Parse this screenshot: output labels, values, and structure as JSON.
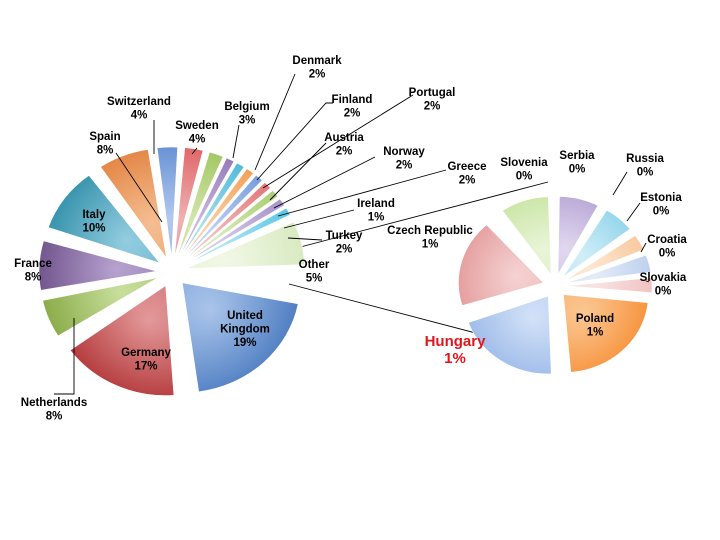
{
  "chart_data": [
    {
      "type": "pie",
      "unit": "%",
      "slices": [
        {
          "label": "United Kingdom",
          "value_text": "19%",
          "value": 19,
          "color": "#4a7ac0",
          "highlight": "#a9c4ea"
        },
        {
          "label": "Germany",
          "value_text": "17%",
          "value": 17,
          "color": "#b03234",
          "highlight": "#e3999a"
        },
        {
          "label": "Netherlands",
          "value_text": "8%",
          "value": 8,
          "color": "#86a844",
          "highlight": "#c8df9c"
        },
        {
          "label": "France",
          "value_text": "8%",
          "value": 8,
          "color": "#6d5089",
          "highlight": "#b7a2cf"
        },
        {
          "label": "Italy",
          "value_text": "10%",
          "value": 10,
          "color": "#2f8ea8",
          "highlight": "#93cde0"
        },
        {
          "label": "Spain",
          "value_text": "8%",
          "value": 8,
          "color": "#e07e3a",
          "highlight": "#f5be92"
        },
        {
          "label": "Switzerland",
          "value_text": "4%",
          "value": 4,
          "color": "#5d88d0",
          "highlight": "#b2c9ef"
        },
        {
          "label": "Sweden",
          "value_text": "4%",
          "value": 4,
          "color": "#dc5b5d",
          "highlight": "#f0b1b2"
        },
        {
          "label": "Belgium",
          "value_text": "3%",
          "value": 3,
          "color": "#9cc25a",
          "highlight": "#d3e7ae"
        },
        {
          "label": "Denmark",
          "value_text": "2%",
          "value": 2,
          "color": "#8e71b4",
          "highlight": "#cbbbe0"
        },
        {
          "label": "Finland",
          "value_text": "2%",
          "value": 2,
          "color": "#44b4d4",
          "highlight": "#a9def0"
        },
        {
          "label": "Portugal",
          "value_text": "2%",
          "value": 2,
          "color": "#f29a4e",
          "highlight": "#fbd0a6"
        },
        {
          "label": "Austria",
          "value_text": "2%",
          "value": 2,
          "color": "#6f97db",
          "highlight": "#bfd2f2"
        },
        {
          "label": "Norway",
          "value_text": "2%",
          "value": 2,
          "color": "#e06d6d",
          "highlight": "#f3bcbc"
        },
        {
          "label": "Greece",
          "value_text": "2%",
          "value": 2,
          "color": "#a6c96b",
          "highlight": "#d9ebba"
        },
        {
          "label": "Ireland",
          "value_text": "1%",
          "value": 1,
          "color": "#a08ac6",
          "highlight": "#d6cbe8"
        },
        {
          "label": "Turkey",
          "value_text": "2%",
          "value": 2,
          "color": "#4fc3e3",
          "highlight": "#b2e6f5"
        },
        {
          "label": "Other",
          "value_text": "5%",
          "value": 5,
          "color": "#d7e9be",
          "highlight": "#f1f8e6"
        }
      ]
    },
    {
      "type": "pie",
      "unit": "%",
      "slices": [
        {
          "label": "Poland",
          "value_text": "1%",
          "value": 1,
          "color": "#f7913a",
          "highlight": "#fbc793"
        },
        {
          "label": "Hungary",
          "value_text": "1%",
          "value": 1,
          "color": "#9bb9e8",
          "highlight": "#d2e1f7"
        },
        {
          "label": "Czech Republic",
          "value_text": "1%",
          "value": 1,
          "color": "#e49c9c",
          "highlight": "#f5d2d2"
        },
        {
          "label": "Slovenia",
          "value_text": "0%",
          "value": 0,
          "color": "#c6e3a0",
          "highlight": "#e9f5d8"
        },
        {
          "label": "Serbia",
          "value_text": "0%",
          "value": 0,
          "color": "#b4a2d4",
          "highlight": "#e1d8ef"
        },
        {
          "label": "Russia",
          "value_text": "0%",
          "value": 0,
          "color": "#8dd3ea",
          "highlight": "#d2eef8"
        },
        {
          "label": "Estonia",
          "value_text": "0%",
          "value": 0,
          "color": "#f8c79b",
          "highlight": "#fde6d0"
        },
        {
          "label": "Croatia",
          "value_text": "0%",
          "value": 0,
          "color": "#bccfee",
          "highlight": "#e4ecf9"
        },
        {
          "label": "Slovakia",
          "value_text": "0%",
          "value": 0,
          "color": "#f0c0c0",
          "highlight": "#f9e2e2"
        }
      ]
    }
  ]
}
